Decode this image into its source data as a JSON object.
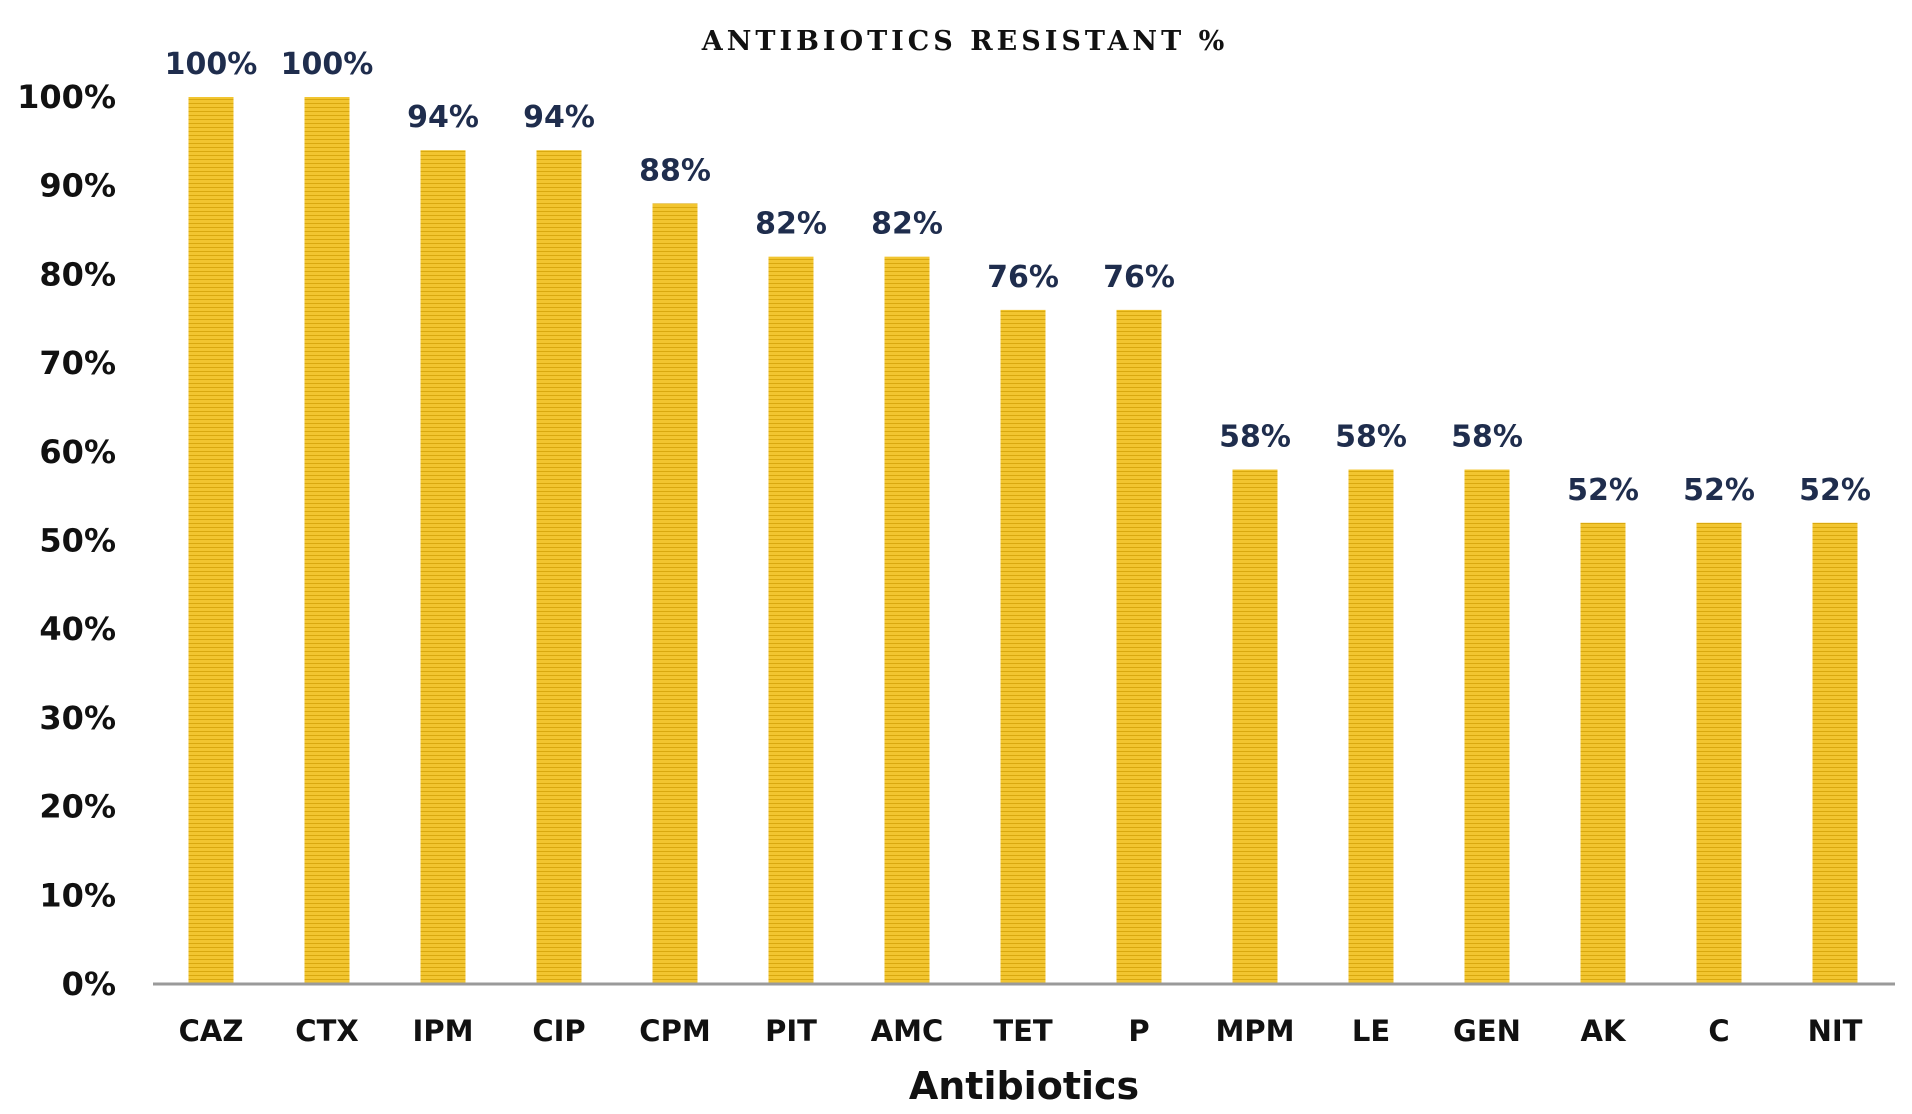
{
  "chart_data": {
    "type": "bar",
    "title": "ANTIBIOTICS RESISTANT %",
    "xlabel": "Antibiotics",
    "ylabel": "",
    "categories": [
      "CAZ",
      "CTX",
      "IPM",
      "CIP",
      "CPM",
      "PIT",
      "AMC",
      "TET",
      "P",
      "MPM",
      "LE",
      "GEN",
      "AK",
      "C",
      "NIT"
    ],
    "values": [
      100,
      100,
      94,
      94,
      88,
      82,
      82,
      76,
      76,
      58,
      58,
      58,
      52,
      52,
      52
    ],
    "data_labels": [
      "100%",
      "100%",
      "94%",
      "94%",
      "88%",
      "82%",
      "82%",
      "76%",
      "76%",
      "58%",
      "58%",
      "58%",
      "52%",
      "52%",
      "52%"
    ],
    "ylim": [
      0,
      100
    ],
    "yticks": [
      0,
      10,
      20,
      30,
      40,
      50,
      60,
      70,
      80,
      90,
      100
    ],
    "ytick_labels": [
      "0%",
      "10%",
      "20%",
      "30%",
      "40%",
      "50%",
      "60%",
      "70%",
      "80%",
      "90%",
      "100%"
    ],
    "grid": false,
    "legend": "none",
    "colors": {
      "bar": "#f2c530",
      "bar_stripe": "#d9a80f",
      "data_label": "#1f2d4d",
      "axis": "#9a9a9a"
    }
  }
}
